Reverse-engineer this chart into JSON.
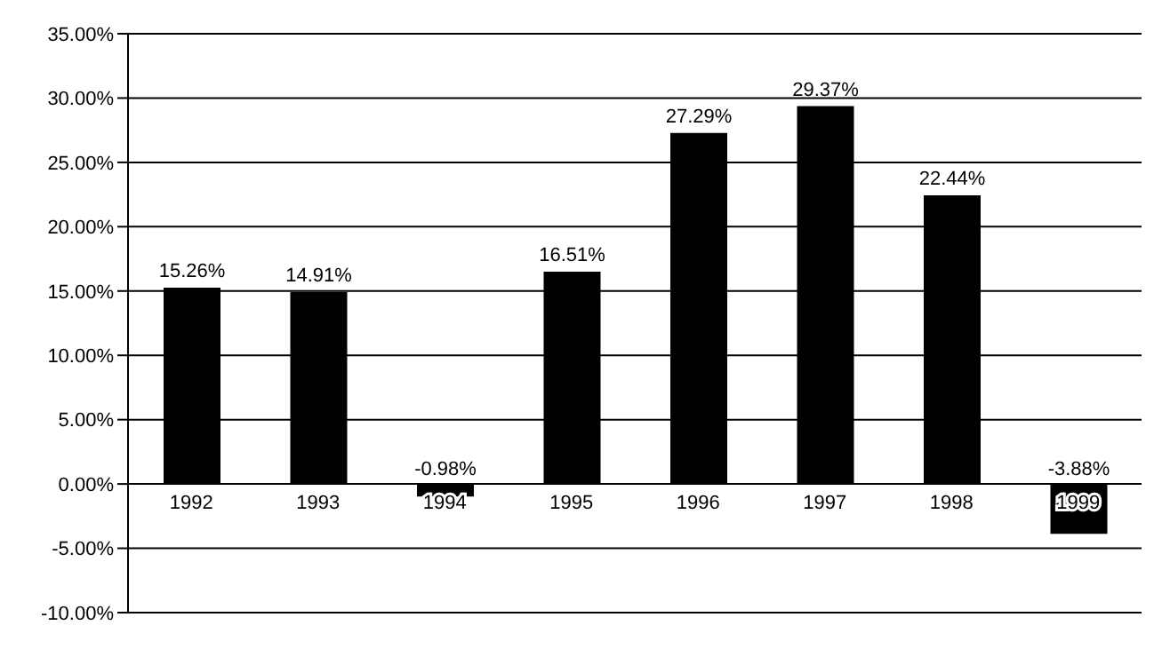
{
  "chart_data": {
    "type": "bar",
    "categories": [
      "1992",
      "1993",
      "1994",
      "1995",
      "1996",
      "1997",
      "1998",
      "1999"
    ],
    "values": [
      15.26,
      14.91,
      -0.98,
      16.51,
      27.29,
      29.37,
      22.44,
      -3.88
    ],
    "value_labels": [
      "15.26%",
      "14.91%",
      "-0.98%",
      "16.51%",
      "27.29%",
      "29.37%",
      "22.44%",
      "-3.88%"
    ],
    "color": "#000000",
    "ylim": [
      -10,
      35
    ],
    "yticks": [
      {
        "value": -10,
        "label": "-10.00%"
      },
      {
        "value": -5,
        "label": "-5.00%"
      },
      {
        "value": 0,
        "label": "0.00%"
      },
      {
        "value": 5,
        "label": "5.00%"
      },
      {
        "value": 10,
        "label": "10.00%"
      },
      {
        "value": 15,
        "label": "15.00%"
      },
      {
        "value": 20,
        "label": "20.00%"
      },
      {
        "value": 25,
        "label": "25.00%"
      },
      {
        "value": 30,
        "label": "30.00%"
      },
      {
        "value": 35,
        "label": "35.00%"
      }
    ],
    "grid": "y"
  }
}
